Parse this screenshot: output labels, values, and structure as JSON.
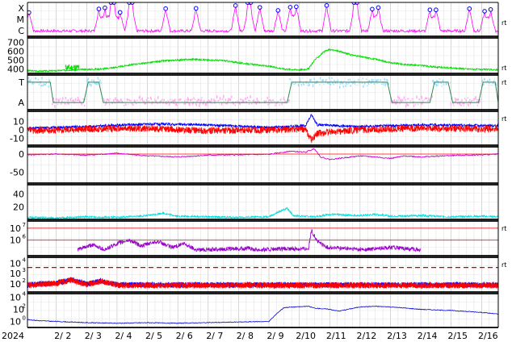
{
  "chart_data": {
    "type": "line",
    "x_axis": {
      "year_label": "2024",
      "day_labels": [
        "2/ 2",
        "2/ 3",
        "2/ 4",
        "2/ 5",
        "2/ 6",
        "2/ 7",
        "2/ 8",
        "2/ 9",
        "2/10",
        "2/11",
        "2/12",
        "2/13",
        "2/14",
        "2/15",
        "2/16"
      ],
      "range_days": [
        1.05,
        16.55
      ],
      "grid": true
    },
    "panels": [
      {
        "id": "xray-class",
        "y_tick_labels": [
          "X",
          "M",
          "C"
        ],
        "series_color": "#ff00ff",
        "flare_marker_color": "#0000ff",
        "flare_days": [
          1.1,
          3.4,
          3.6,
          3.8,
          3.9,
          4.1,
          4.4,
          4.5,
          5.6,
          6.6,
          7.9,
          8.3,
          8.4,
          8.7,
          9.3,
          9.7,
          9.9,
          10.9,
          11.8,
          11.9,
          12.4,
          12.6,
          14.3,
          14.5,
          15.6,
          16.1,
          16.3
        ],
        "right_marker": "rt"
      },
      {
        "id": "solar-wind-speed",
        "y_tick_labels": [
          "700",
          "600",
          "500",
          "400"
        ],
        "ylim": [
          350,
          750
        ],
        "series_color": "#00dd00",
        "right_marker": "rt",
        "points": [
          [
            1.05,
            380
          ],
          [
            1.5,
            375
          ],
          [
            2.0,
            380
          ],
          [
            2.5,
            390
          ],
          [
            3.0,
            395
          ],
          [
            3.5,
            400
          ],
          [
            4.0,
            420
          ],
          [
            4.5,
            450
          ],
          [
            5.0,
            470
          ],
          [
            5.5,
            490
          ],
          [
            6.0,
            500
          ],
          [
            6.5,
            510
          ],
          [
            7.0,
            500
          ],
          [
            7.5,
            495
          ],
          [
            8.0,
            470
          ],
          [
            8.5,
            450
          ],
          [
            9.0,
            430
          ],
          [
            9.5,
            400
          ],
          [
            10.0,
            390
          ],
          [
            10.3,
            400
          ],
          [
            10.5,
            500
          ],
          [
            10.8,
            590
          ],
          [
            11.0,
            620
          ],
          [
            11.3,
            600
          ],
          [
            11.7,
            560
          ],
          [
            12.0,
            540
          ],
          [
            12.5,
            510
          ],
          [
            13.0,
            470
          ],
          [
            13.5,
            450
          ],
          [
            14.0,
            440
          ],
          [
            14.5,
            420
          ],
          [
            15.0,
            410
          ],
          [
            15.5,
            400
          ],
          [
            16.0,
            395
          ],
          [
            16.55,
            390
          ]
        ]
      },
      {
        "id": "imf-sector",
        "y_tick_labels": [
          "T",
          "A"
        ],
        "series_colors": [
          "#99ddff",
          "#ffaaee",
          "#2e8b57"
        ],
        "right_marker": "rt",
        "sector_points": [
          [
            1.05,
            1
          ],
          [
            1.8,
            1
          ],
          [
            1.9,
            0
          ],
          [
            2.9,
            0
          ],
          [
            3.05,
            1
          ],
          [
            3.4,
            1
          ],
          [
            3.55,
            0
          ],
          [
            9.6,
            0
          ],
          [
            9.75,
            1
          ],
          [
            12.9,
            1
          ],
          [
            13.05,
            0
          ],
          [
            14.3,
            0
          ],
          [
            14.45,
            1
          ],
          [
            14.9,
            1
          ],
          [
            15.05,
            0
          ],
          [
            15.9,
            0
          ],
          [
            16.05,
            1
          ],
          [
            16.45,
            1
          ],
          [
            16.55,
            0
          ]
        ]
      },
      {
        "id": "imf-components",
        "y_tick_labels": [
          "10",
          "0",
          "-10"
        ],
        "ylim": [
          -18,
          22
        ],
        "series": [
          {
            "color": "#0000ff",
            "points": [
              [
                1.05,
                2
              ],
              [
                3,
                4
              ],
              [
                5,
                7
              ],
              [
                7,
                6
              ],
              [
                9,
                3
              ],
              [
                10.2,
                5
              ],
              [
                10.4,
                18
              ],
              [
                10.6,
                6
              ],
              [
                12,
                4
              ],
              [
                14,
                6
              ],
              [
                16.55,
                5
              ]
            ]
          },
          {
            "color": "#ff0000",
            "points": [
              [
                1.05,
                -1
              ],
              [
                3,
                1
              ],
              [
                5,
                2
              ],
              [
                7,
                -1
              ],
              [
                9,
                0
              ],
              [
                10.2,
                1
              ],
              [
                10.4,
                -12
              ],
              [
                10.6,
                -4
              ],
              [
                12,
                0
              ],
              [
                14,
                2
              ],
              [
                16.55,
                1
              ]
            ]
          }
        ],
        "right_marker": "rt"
      },
      {
        "id": "dst",
        "y_tick_labels": [
          "0",
          "-50"
        ],
        "ylim": [
          -80,
          20
        ],
        "series_color": "#cc00cc",
        "baseline_color": "#ff0000",
        "points": [
          [
            1.05,
            -2
          ],
          [
            2,
            0
          ],
          [
            3,
            -3
          ],
          [
            4,
            2
          ],
          [
            5,
            -5
          ],
          [
            6,
            -8
          ],
          [
            7,
            -3
          ],
          [
            8,
            -2
          ],
          [
            9,
            -1
          ],
          [
            9.7,
            8
          ],
          [
            10.2,
            5
          ],
          [
            10.5,
            15
          ],
          [
            10.7,
            -8
          ],
          [
            11,
            -15
          ],
          [
            11.5,
            -10
          ],
          [
            12,
            -5
          ],
          [
            12.5,
            -8
          ],
          [
            13,
            -12
          ],
          [
            13.5,
            -5
          ],
          [
            14,
            -8
          ],
          [
            15,
            -4
          ],
          [
            16,
            -2
          ],
          [
            16.55,
            0
          ]
        ]
      },
      {
        "id": "proton-density",
        "y_tick_labels": [
          "40",
          "20"
        ],
        "ylim": [
          0,
          55
        ],
        "series_color": "#00dddd",
        "points": [
          [
            1.05,
            3
          ],
          [
            2,
            2
          ],
          [
            3,
            4
          ],
          [
            4,
            3
          ],
          [
            5,
            6
          ],
          [
            5.5,
            10
          ],
          [
            6,
            5
          ],
          [
            7,
            4
          ],
          [
            8,
            3
          ],
          [
            9,
            4
          ],
          [
            9.6,
            18
          ],
          [
            9.8,
            6
          ],
          [
            10.5,
            4
          ],
          [
            11,
            8
          ],
          [
            12,
            6
          ],
          [
            12.5,
            8
          ],
          [
            13,
            5
          ],
          [
            14,
            6
          ],
          [
            15,
            4
          ],
          [
            16,
            5
          ],
          [
            16.55,
            4
          ]
        ]
      },
      {
        "id": "proton-flux",
        "y_tick_labels": [
          "10",
          "10"
        ],
        "y_tick_exponents": [
          "7",
          "6"
        ],
        "threshold_color": "#cc0000",
        "series_color": "#9900cc",
        "right_marker": "rt",
        "points": [
          [
            2.7,
            0.2
          ],
          [
            3.2,
            0.6
          ],
          [
            3.6,
            0.2
          ],
          [
            4.0,
            0.7
          ],
          [
            4.4,
            1.0
          ],
          [
            4.8,
            0.5
          ],
          [
            5.3,
            0.9
          ],
          [
            5.8,
            0.4
          ],
          [
            6.2,
            0.7
          ],
          [
            6.6,
            0.2
          ],
          [
            8.3,
            0.3
          ],
          [
            8.7,
            0.2
          ],
          [
            10.3,
            0.3
          ],
          [
            10.4,
            1.8
          ],
          [
            10.6,
            0.9
          ],
          [
            10.9,
            0.4
          ],
          [
            11.5,
            0.3
          ],
          [
            12.2,
            0.2
          ],
          [
            13.0,
            0.4
          ],
          [
            13.4,
            0.3
          ],
          [
            14.0,
            0.2
          ]
        ]
      },
      {
        "id": "electron-flux",
        "y_tick_labels": [
          "10",
          "10",
          "10"
        ],
        "y_tick_exponents": [
          "4",
          "3",
          "2"
        ],
        "threshold_color": "#cc0000",
        "series_colors": [
          "#0000ff",
          "#ff0000"
        ],
        "right_marker": "rt"
      },
      {
        "id": "electron-flux-high",
        "y_tick_labels": [
          "10",
          "10"
        ],
        "y_tick_exponents": [
          "4",
          "0"
        ],
        "series_color": "#0000cc",
        "points": [
          [
            1.05,
            0.3
          ],
          [
            1.5,
            0.1
          ],
          [
            2,
            0
          ],
          [
            3,
            -0.2
          ],
          [
            4,
            -0.3
          ],
          [
            5,
            -0.2
          ],
          [
            6,
            -0.3
          ],
          [
            7,
            -0.2
          ],
          [
            8,
            -0.1
          ],
          [
            9,
            0
          ],
          [
            9.3,
            1.5
          ],
          [
            9.5,
            2.3
          ],
          [
            10.3,
            2.5
          ],
          [
            10.5,
            2.2
          ],
          [
            11,
            2.0
          ],
          [
            11.3,
            1.7
          ],
          [
            12,
            2.4
          ],
          [
            12.5,
            2.5
          ],
          [
            13,
            2.4
          ],
          [
            14,
            2.0
          ],
          [
            15,
            1.8
          ],
          [
            16,
            1.5
          ],
          [
            16.55,
            1.2
          ]
        ]
      }
    ]
  }
}
